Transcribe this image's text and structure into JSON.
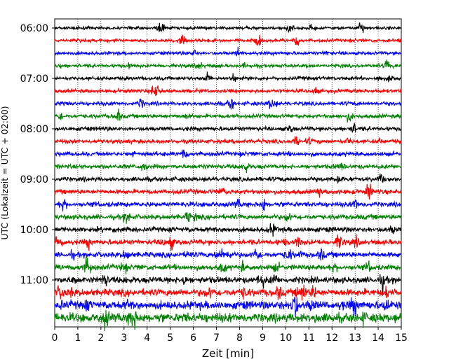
{
  "chart_data": {
    "type": "line",
    "subtype": "helicorder",
    "title": "",
    "xlabel": "Zeit  [min]",
    "ylabel": "UTC (Lokalzeit = UTC + 02:00)",
    "xlim": [
      0,
      15
    ],
    "x_ticks": [
      0,
      1,
      2,
      3,
      4,
      5,
      6,
      7,
      8,
      9,
      10,
      11,
      12,
      13,
      14,
      15
    ],
    "x_grid": "dotted-vertical",
    "y_tick_labels": [
      "06:00",
      "07:00",
      "08:00",
      "09:00",
      "10:00",
      "11:00"
    ],
    "y_tick_rows": [
      0,
      4,
      8,
      12,
      16,
      20
    ],
    "trace_interval_minutes": 15,
    "start_time": "06:00",
    "trace_colors": [
      "#000000",
      "#ff0000",
      "#0000ff",
      "#008000"
    ],
    "traces": [
      {
        "start": "06:00",
        "color": "#000000"
      },
      {
        "start": "06:15",
        "color": "#ff0000"
      },
      {
        "start": "06:30",
        "color": "#0000ff"
      },
      {
        "start": "06:45",
        "color": "#008000"
      },
      {
        "start": "07:00",
        "color": "#000000"
      },
      {
        "start": "07:15",
        "color": "#ff0000"
      },
      {
        "start": "07:30",
        "color": "#0000ff"
      },
      {
        "start": "07:45",
        "color": "#008000"
      },
      {
        "start": "08:00",
        "color": "#000000"
      },
      {
        "start": "08:15",
        "color": "#ff0000"
      },
      {
        "start": "08:30",
        "color": "#0000ff"
      },
      {
        "start": "08:45",
        "color": "#008000"
      },
      {
        "start": "09:00",
        "color": "#000000"
      },
      {
        "start": "09:15",
        "color": "#ff0000"
      },
      {
        "start": "09:30",
        "color": "#0000ff"
      },
      {
        "start": "09:45",
        "color": "#008000"
      },
      {
        "start": "10:00",
        "color": "#000000"
      },
      {
        "start": "10:15",
        "color": "#ff0000"
      },
      {
        "start": "10:30",
        "color": "#0000ff"
      },
      {
        "start": "10:45",
        "color": "#008000"
      },
      {
        "start": "11:00",
        "color": "#000000"
      },
      {
        "start": "11:15",
        "color": "#ff0000"
      },
      {
        "start": "11:30",
        "color": "#0000ff"
      },
      {
        "start": "11:45",
        "color": "#008000"
      }
    ]
  }
}
